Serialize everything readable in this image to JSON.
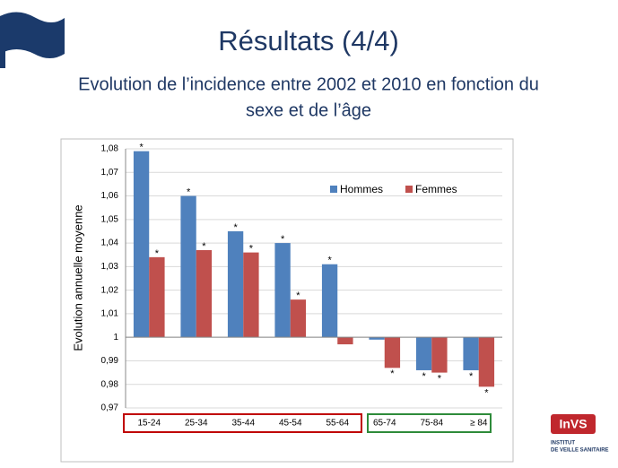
{
  "chart_data": {
    "type": "bar",
    "title": "Résultats (4/4)",
    "subtitle": [
      "Evolution de l’incidence entre 2002 et 2010 en fonction du",
      "sexe et de l’âge"
    ],
    "ylabel": "Evolution annuelle moyenne",
    "categories": [
      "15-24",
      "25-34",
      "35-44",
      "45-54",
      "55-64",
      "65-74",
      "75-84",
      "≥ 84"
    ],
    "series": [
      {
        "name": "Hommes",
        "color": "#4f81bd",
        "values": [
          1.079,
          1.06,
          1.045,
          1.04,
          1.031,
          0.999,
          0.986,
          0.986
        ],
        "markers": [
          "*",
          "*",
          "*",
          "*",
          "*",
          null,
          "*",
          "*"
        ]
      },
      {
        "name": "Femmes",
        "color": "#c0504d",
        "values": [
          1.034,
          1.037,
          1.036,
          1.016,
          0.997,
          0.987,
          0.985,
          0.979
        ],
        "markers": [
          "*",
          "*",
          "*",
          "*",
          null,
          "*",
          "*",
          "*"
        ]
      }
    ],
    "baseline": 1,
    "ylim": [
      0.97,
      1.08
    ],
    "yticks": [
      {
        "value": 0.97,
        "label": "0,97"
      },
      {
        "value": 0.98,
        "label": "0,98"
      },
      {
        "value": 0.99,
        "label": "0,99"
      },
      {
        "value": 1,
        "label": "1"
      },
      {
        "value": 1.01,
        "label": "1,01"
      },
      {
        "value": 1.02,
        "label": "1,02"
      },
      {
        "value": 1.03,
        "label": "1,03"
      },
      {
        "value": 1.04,
        "label": "1,04"
      },
      {
        "value": 1.05,
        "label": "1,05"
      },
      {
        "value": 1.06,
        "label": "1,06"
      },
      {
        "value": 1.07,
        "label": "1,07"
      },
      {
        "value": 1.08,
        "label": "1,08"
      }
    ],
    "grid": true,
    "legend": "top-right"
  },
  "logo": {
    "name": "InVS",
    "lines": [
      "INSTITUT",
      "DE VEILLE SANITAIRE"
    ]
  }
}
